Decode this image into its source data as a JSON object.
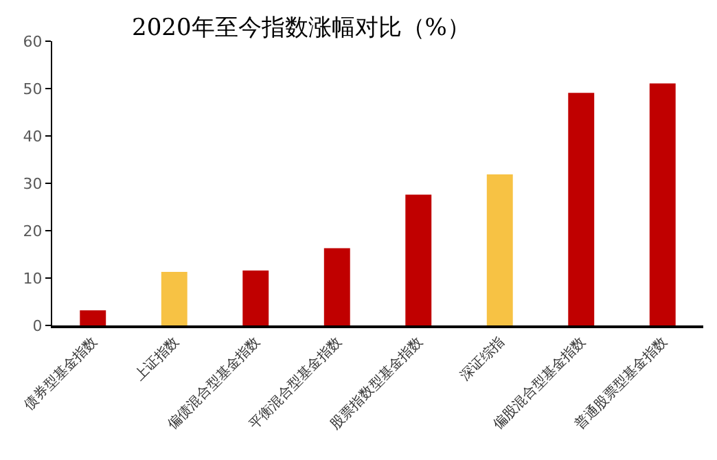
{
  "chart_data": {
    "type": "bar",
    "title": "2020年至今指数涨幅对比（%）",
    "categories": [
      "债券型基金指数",
      "上证指数",
      "偏债混合型基金指数",
      "平衡混合型基金指数",
      "股票指数型基金指数",
      "深证综指",
      "偏股混合型基金指数",
      "普通股票型基金指数"
    ],
    "values": [
      3.2,
      11.3,
      11.6,
      16.3,
      27.6,
      31.9,
      49.1,
      51.1
    ],
    "colors": [
      "#c00000",
      "#f7c244",
      "#c00000",
      "#c00000",
      "#c00000",
      "#f7c244",
      "#c00000",
      "#c00000"
    ],
    "ylim": [
      0,
      60
    ],
    "yticks": [
      0,
      10,
      20,
      30,
      40,
      50,
      60
    ]
  }
}
